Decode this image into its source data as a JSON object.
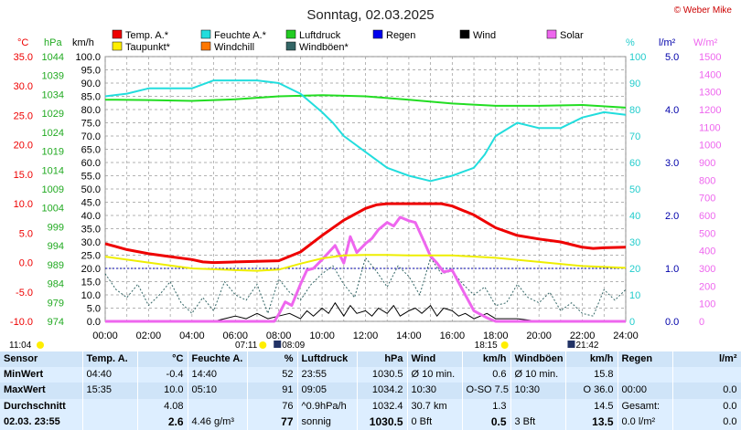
{
  "header": {
    "title": "Sonntag, 02.03.2025",
    "credit": "© Weber Mike"
  },
  "legend": [
    {
      "label": "Temp. A.*",
      "color": "#ee0000"
    },
    {
      "label": "Feuchte A.*",
      "color": "#22dddd"
    },
    {
      "label": "Luftdruck",
      "color": "#22cc22"
    },
    {
      "label": "Regen",
      "color": "#0000ee"
    },
    {
      "label": "Wind",
      "color": "#000000"
    },
    {
      "label": "Solar",
      "color": "#ee66ee"
    },
    {
      "label": "Taupunkt*",
      "color": "#ffee00"
    },
    {
      "label": "Windchill",
      "color": "#ff7700"
    },
    {
      "label": "Windböen*",
      "color": "#336666"
    }
  ],
  "axis_units": {
    "temp": "°C",
    "pressure": "hPa",
    "wind": "km/h",
    "humidity": "%",
    "rain": "l/m²",
    "solar": "W/m²"
  },
  "axis_colors": {
    "temp": "#ee0000",
    "pressure": "#22aa22",
    "wind": "#000000",
    "humidity": "#22cccc",
    "rain": "#0000aa",
    "solar": "#ee66ee"
  },
  "chart_data": {
    "type": "line",
    "x_ticks": [
      "00:00",
      "02:00",
      "04:00",
      "06:00",
      "08:00",
      "10:00",
      "12:00",
      "14:00",
      "16:00",
      "18:00",
      "20:00",
      "22:00",
      "24:00"
    ],
    "axes": {
      "temp": {
        "ylim": [
          -10,
          35
        ],
        "ticks": [
          "35.0",
          "30.0",
          "25.0",
          "20.0",
          "15.0",
          "10.0",
          "5.0",
          "0.0",
          "-5.0",
          "-10.0"
        ]
      },
      "pressure": {
        "ylim": [
          974,
          1044
        ],
        "ticks": [
          "1044",
          "1039",
          "1034",
          "1029",
          "1024",
          "1019",
          "1014",
          "1009",
          "1004",
          "999",
          "994",
          "989",
          "984",
          "979",
          "974"
        ]
      },
      "wind": {
        "ylim": [
          0,
          100
        ],
        "ticks": [
          "100.0",
          "95.0",
          "90.0",
          "85.0",
          "80.0",
          "75.0",
          "70.0",
          "65.0",
          "60.0",
          "55.0",
          "50.0",
          "45.0",
          "40.0",
          "35.0",
          "30.0",
          "25.0",
          "20.0",
          "15.0",
          "10.0",
          "5.0",
          "0.0"
        ]
      },
      "humidity": {
        "ylim": [
          0,
          100
        ],
        "ticks": [
          "100",
          "90",
          "80",
          "70",
          "60",
          "50",
          "40",
          "30",
          "20",
          "10",
          "0"
        ]
      },
      "rain": {
        "ylim": [
          0,
          5
        ],
        "ticks": [
          "5.0",
          "4.0",
          "3.0",
          "2.0",
          "1.0",
          "0.0"
        ]
      },
      "solar": {
        "ylim": [
          0,
          1500
        ],
        "ticks": [
          "1500",
          "1400",
          "1300",
          "1200",
          "1100",
          "1000",
          "900",
          "800",
          "700",
          "600",
          "500",
          "400",
          "300",
          "200",
          "100",
          "0"
        ]
      }
    },
    "series": [
      {
        "name": "Temp. A.*",
        "axis": "temp",
        "color": "#ee0000",
        "width": 3,
        "x": [
          0,
          1,
          2,
          3,
          4,
          4.5,
          5,
          6,
          7,
          8,
          9,
          10,
          11,
          12,
          12.5,
          13,
          13.5,
          14,
          14.5,
          15,
          15.5,
          16,
          17,
          18,
          19,
          20,
          21,
          22,
          22.5,
          23,
          24
        ],
        "y": [
          3.2,
          2.2,
          1.5,
          1.0,
          0.5,
          0.1,
          0,
          0.1,
          0.2,
          0.3,
          1.8,
          4.6,
          7.2,
          9.2,
          9.8,
          10.0,
          10.0,
          10.0,
          10.0,
          10.0,
          10.0,
          9.6,
          8.1,
          5.9,
          4.6,
          4.0,
          3.5,
          2.6,
          2.4,
          2.5,
          2.6
        ]
      },
      {
        "name": "Taupunkt*",
        "axis": "temp",
        "color": "#eeee00",
        "width": 2,
        "x": [
          0,
          2,
          4,
          6,
          7,
          8,
          9,
          10,
          11,
          12,
          13,
          14,
          16,
          18,
          20,
          22,
          24
        ],
        "y": [
          1.0,
          0.0,
          -1.0,
          -1.3,
          -1.4,
          -1.2,
          -0.2,
          0.7,
          1.2,
          1.3,
          1.3,
          1.2,
          1.2,
          0.8,
          0.1,
          -0.6,
          -0.9
        ]
      },
      {
        "name": "Feuchte A.*",
        "axis": "humidity",
        "color": "#22dddd",
        "width": 2,
        "x": [
          0,
          1,
          2,
          3,
          4,
          5,
          6,
          7,
          8,
          9,
          10,
          10.5,
          11,
          12,
          13,
          14,
          15,
          16,
          17,
          17.5,
          18,
          19,
          20,
          21,
          22,
          23,
          24
        ],
        "y": [
          85,
          86,
          88,
          88,
          88,
          91,
          91,
          91,
          90,
          86,
          79,
          75,
          70,
          64,
          58,
          55,
          53,
          55,
          58,
          63,
          70,
          75,
          73,
          73,
          77,
          79,
          78
        ]
      },
      {
        "name": "Luftdruck",
        "axis": "pressure",
        "color": "#22dd22",
        "width": 2,
        "x": [
          0,
          2,
          4,
          6,
          8,
          10,
          12,
          14,
          16,
          18,
          20,
          22,
          24
        ],
        "y": [
          1032.6,
          1032.5,
          1032.3,
          1032.7,
          1033.5,
          1033.8,
          1033.5,
          1032.6,
          1031.6,
          1031.0,
          1031.0,
          1031.2,
          1030.5
        ]
      },
      {
        "name": "Solar",
        "axis": "solar",
        "color": "#ee66ee",
        "width": 3,
        "x": [
          0,
          7.8,
          8,
          8.3,
          8.6,
          9,
          9.3,
          9.6,
          10,
          10.3,
          10.6,
          11,
          11.3,
          11.6,
          12,
          12.3,
          12.6,
          13,
          13.3,
          13.6,
          14,
          14.3,
          14.6,
          15,
          15.3,
          15.6,
          16,
          16.3,
          16.6,
          17,
          17.3,
          17.6,
          18,
          24
        ],
        "y": [
          0,
          0,
          40,
          110,
          90,
          210,
          290,
          300,
          350,
          390,
          430,
          330,
          480,
          390,
          440,
          470,
          520,
          560,
          540,
          590,
          570,
          560,
          480,
          370,
          330,
          280,
          290,
          220,
          150,
          60,
          40,
          20,
          0,
          0
        ]
      },
      {
        "name": "Windböen*",
        "axis": "wind",
        "color": "#336666",
        "width": 1,
        "dash": "2,2",
        "x": [
          0,
          0.5,
          1,
          1.5,
          2,
          2.5,
          3,
          3.5,
          4,
          4.5,
          5,
          5.5,
          6,
          6.5,
          7,
          7.5,
          8,
          8.5,
          9,
          9.5,
          10,
          10.5,
          11,
          11.5,
          12,
          12.5,
          13,
          13.5,
          14,
          14.5,
          15,
          15.5,
          16,
          16.5,
          17,
          17.5,
          18,
          18.5,
          19,
          19.5,
          20,
          20.5,
          21,
          21.5,
          22,
          22.5,
          23,
          23.5,
          24
        ],
        "y": [
          18,
          12,
          9,
          14,
          6,
          10,
          15,
          7,
          3,
          9,
          4,
          15,
          10,
          8,
          14,
          3,
          16,
          11,
          8,
          14,
          18,
          21,
          14,
          9,
          24,
          19,
          13,
          21,
          17,
          10,
          24,
          18,
          19,
          14,
          10,
          13,
          6,
          7,
          14,
          9,
          7,
          11,
          4,
          7,
          3,
          2,
          12,
          8,
          12
        ]
      },
      {
        "name": "Wind",
        "axis": "wind",
        "color": "#000000",
        "width": 1,
        "x": [
          0,
          1,
          2,
          3,
          4,
          5,
          5.5,
          6,
          6.5,
          7,
          7.5,
          8,
          8.5,
          9,
          9.3,
          9.6,
          10,
          10.3,
          10.6,
          11,
          11.3,
          11.6,
          12,
          12.3,
          12.6,
          13,
          13.3,
          13.6,
          14,
          14.3,
          14.6,
          15,
          15.3,
          15.6,
          16,
          16.3,
          16.6,
          17,
          17.3,
          17.6,
          18,
          19,
          20,
          21,
          22,
          23,
          24
        ],
        "y": [
          0,
          0,
          0,
          0,
          0,
          0,
          1,
          2,
          1,
          3,
          1,
          2,
          3,
          1,
          4,
          2,
          5,
          3,
          7,
          2,
          6,
          3,
          4,
          2,
          5,
          3,
          6,
          2,
          4,
          5,
          3,
          6,
          2,
          5,
          4,
          2,
          3,
          1,
          2,
          3,
          1,
          1,
          0,
          0,
          0,
          0,
          0
        ]
      }
    ],
    "rain_reference": {
      "axis": "rain",
      "value": 1.0,
      "color": "#0000aa"
    },
    "sun": {
      "sunrise": "07:11",
      "sunset": "18:15",
      "moonrise": "08:09",
      "moonset": "21:42",
      "left_time": "11:04"
    }
  },
  "table": {
    "headers": {
      "sensor": "Sensor",
      "temp": "Temp. A.",
      "temp_u": "°C",
      "hum": "Feuchte A.",
      "hum_u": "%",
      "press": "Luftdruck",
      "press_u": "hPa",
      "wind": "Wind",
      "wind_u": "km/h",
      "gust": "Windböen",
      "gust_u": "km/h",
      "rain": "Regen",
      "rain_u": "l/m²"
    },
    "rows": [
      {
        "label": "MinWert",
        "temp_t": "04:40",
        "temp_v": "-0.4",
        "hum_t": "14:40",
        "hum_v": "52",
        "press_t": "23:55",
        "press_v": "1030.5",
        "wind_t": "Ø 10 min.",
        "wind_v": "0.6",
        "gust_t": "Ø 10 min.",
        "gust_v": "15.8",
        "rain_t": "",
        "rain_v": ""
      },
      {
        "label": "MaxWert",
        "temp_t": "15:35",
        "temp_v": "10.0",
        "hum_t": "05:10",
        "hum_v": "91",
        "press_t": "09:05",
        "press_v": "1034.2",
        "wind_t": "10:30",
        "wind_v": "O-SO 7.5",
        "gust_t": "10:30",
        "gust_v": "O 36.0",
        "rain_t": "00:00",
        "rain_v": "0.0"
      },
      {
        "label": "Durchschnitt",
        "temp_t": "",
        "temp_v": "4.08",
        "hum_t": "",
        "hum_v": "76",
        "press_t": "^0.9hPa/h",
        "press_v": "1032.4",
        "wind_t": "30.7 km",
        "wind_v": "1.3",
        "gust_t": "",
        "gust_v": "14.5",
        "rain_t": "Gesamt:",
        "rain_v": "0.0"
      },
      {
        "label": "02.03. 23:55",
        "temp_t": "",
        "temp_v": "2.6",
        "hum_t": "4.46 g/m³",
        "hum_v": "77",
        "press_t": "sonnig",
        "press_v": "1030.5",
        "wind_t": "0 Bft",
        "wind_v": "0.5",
        "gust_t": "3 Bft",
        "gust_v": "13.5",
        "rain_t": "0.0 l/m²",
        "rain_v": "0.0"
      }
    ]
  }
}
